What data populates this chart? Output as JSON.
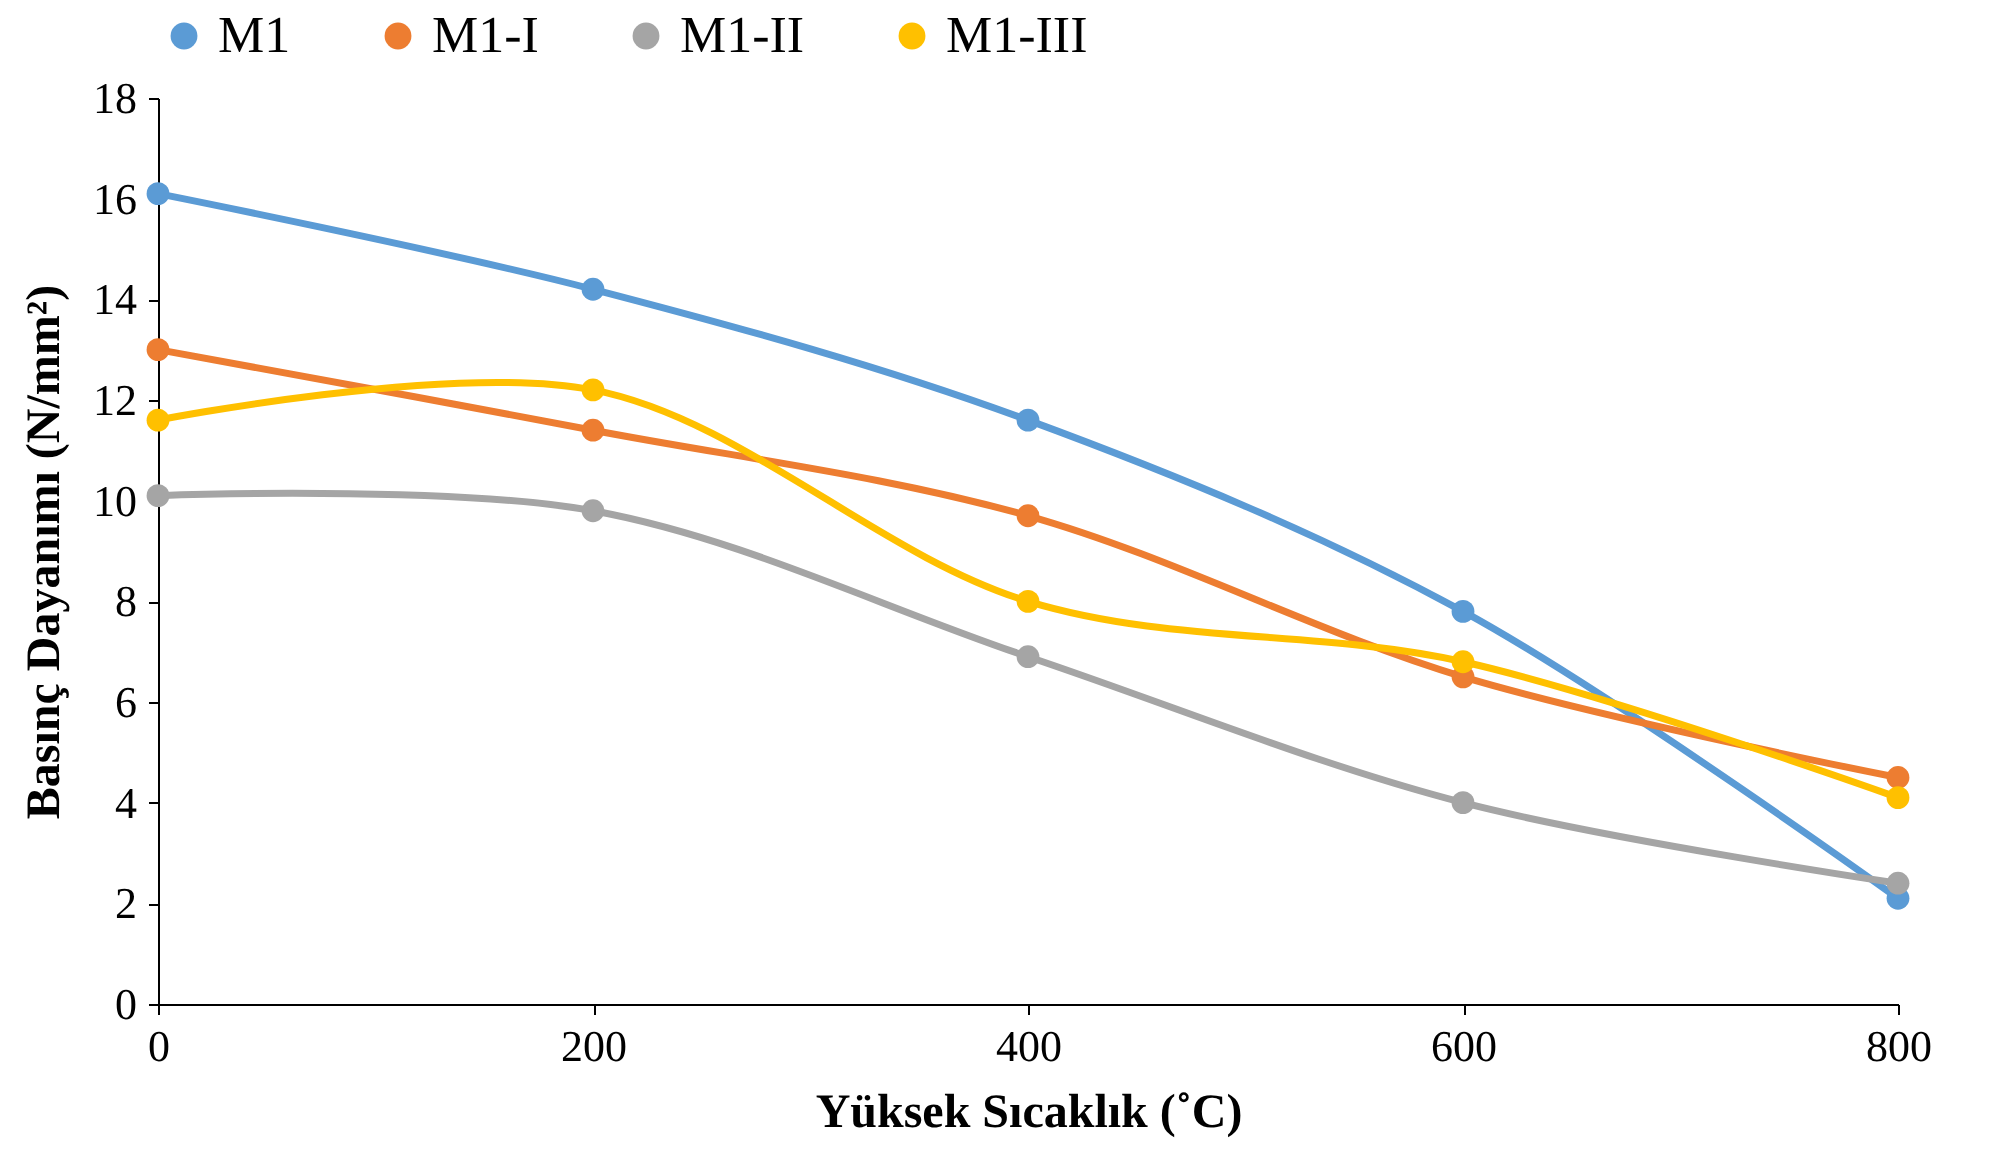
{
  "chart_data": {
    "type": "line",
    "xlabel": "Yüksek Sıcaklık (˚C)",
    "ylabel": "Basınç Dayanımı (N/mm²)",
    "x": [
      0,
      200,
      400,
      600,
      800
    ],
    "series": [
      {
        "name": "M1",
        "color": "#5b9bd5",
        "values": [
          16.1,
          14.2,
          11.6,
          7.8,
          2.1
        ]
      },
      {
        "name": "M1-I",
        "color": "#ed7d31",
        "values": [
          13.0,
          11.4,
          9.7,
          6.5,
          4.5
        ]
      },
      {
        "name": "M1-II",
        "color": "#a5a5a5",
        "values": [
          10.1,
          9.8,
          6.9,
          4.0,
          2.4
        ]
      },
      {
        "name": "M1-III",
        "color": "#ffc000",
        "values": [
          11.6,
          12.2,
          8.0,
          6.8,
          4.1
        ]
      }
    ],
    "xlim": [
      0,
      800
    ],
    "xticks": [
      0,
      200,
      400,
      600,
      800
    ],
    "ylim": [
      0,
      18
    ],
    "yticks": [
      0,
      2,
      4,
      6,
      8,
      10,
      12,
      14,
      16,
      18
    ],
    "grid": false,
    "legend": "top",
    "marker": "circle",
    "line_style": "solid"
  }
}
